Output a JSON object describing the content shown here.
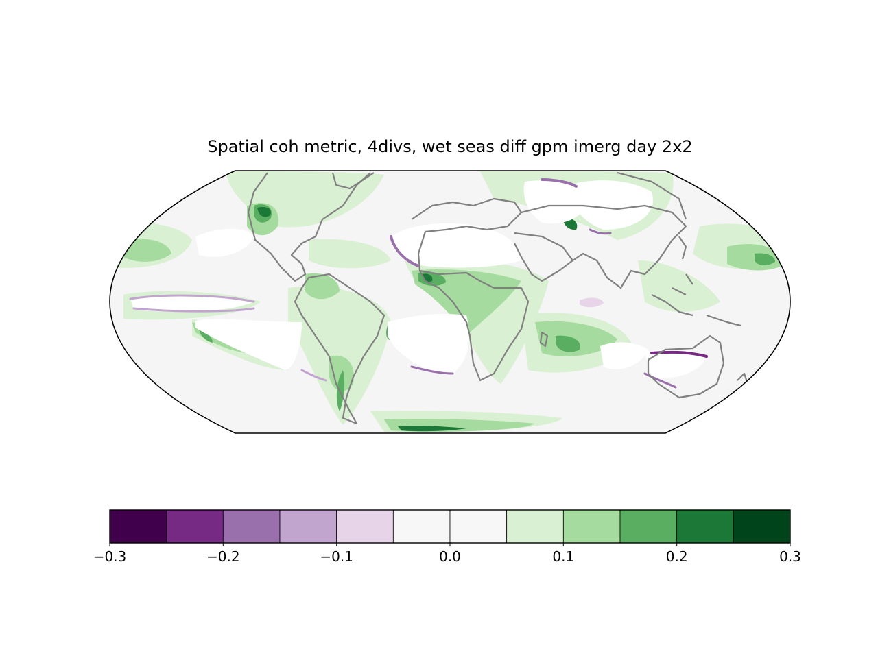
{
  "title": "Spatial coh metric, 4divs, wet seas diff gpm imerg day 2x2",
  "map": {
    "projection": "robinson",
    "coastline_color": "#808080",
    "background_color": "#f5f5f5",
    "masked_color": "#ffffff"
  },
  "colorbar": {
    "orientation": "horizontal",
    "colormap": "PRGn",
    "levels": [
      -0.3,
      -0.25,
      -0.2,
      -0.15,
      -0.1,
      -0.05,
      0.0,
      0.05,
      0.1,
      0.15,
      0.2,
      0.25,
      0.3
    ],
    "colors": [
      "#40004b",
      "#762a83",
      "#9970ab",
      "#c2a5cf",
      "#e7d4e8",
      "#f7f7f7",
      "#f7f7f7",
      "#d9f0d3",
      "#a6dba0",
      "#5aae61",
      "#1b7837",
      "#00441b"
    ],
    "tick_labels": [
      "−0.3",
      "−0.2",
      "−0.1",
      "0.0",
      "0.1",
      "0.2",
      "0.3"
    ]
  }
}
